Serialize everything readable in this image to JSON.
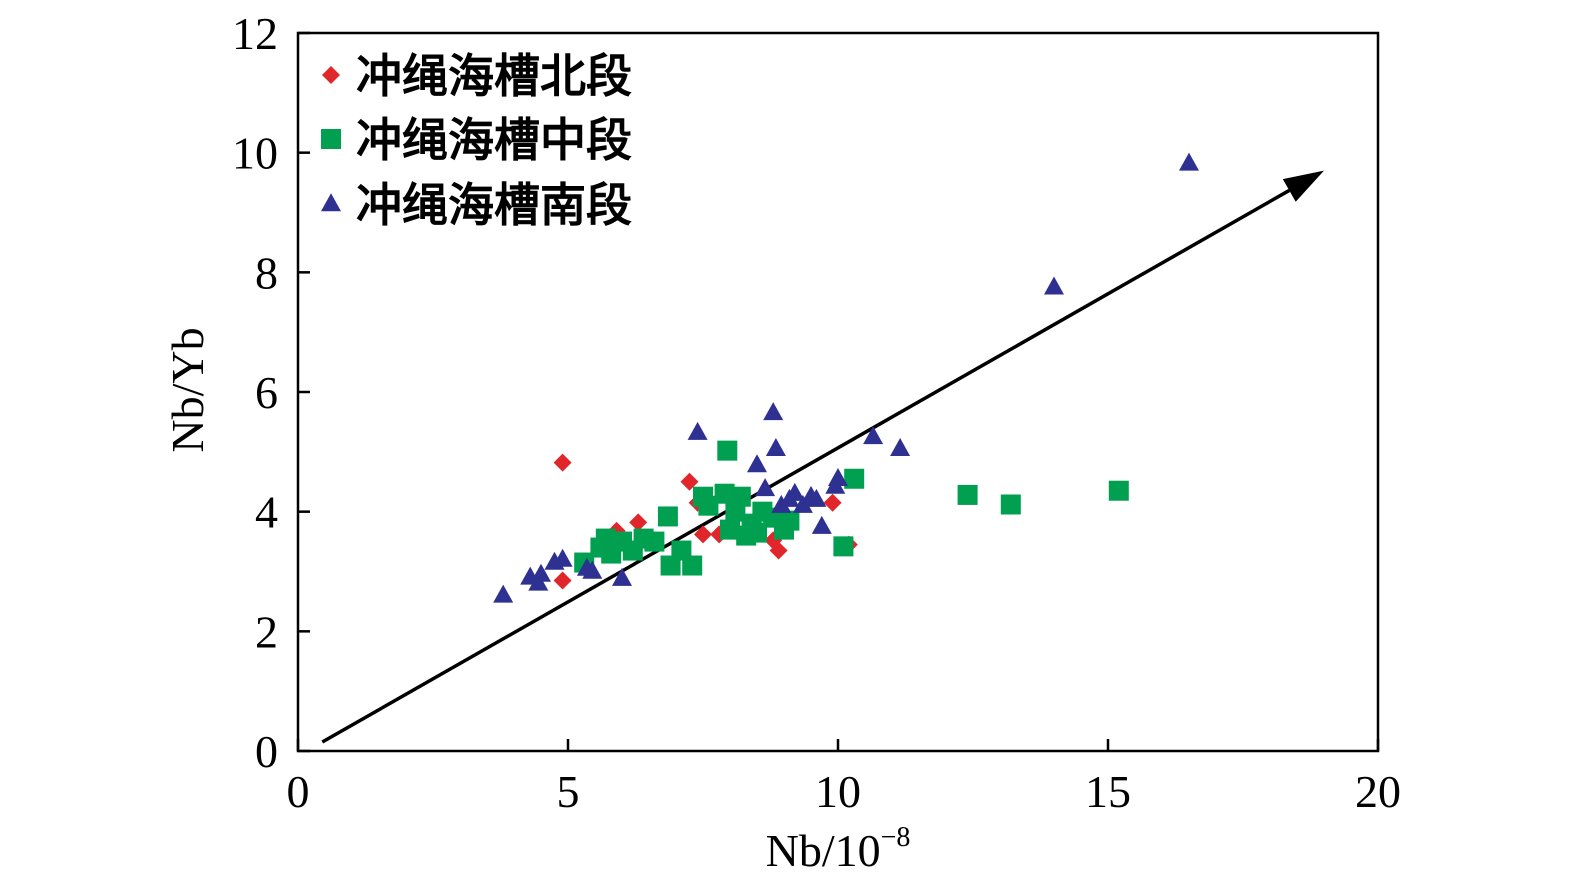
{
  "chart_data": {
    "type": "scatter",
    "xlabel_main": "Nb/10",
    "xlabel_exp": "−8",
    "ylabel": "Nb/Yb",
    "xlim": [
      0,
      20
    ],
    "ylim": [
      0,
      12
    ],
    "x_ticks": [
      0,
      5,
      10,
      15,
      20
    ],
    "x_tick_labels": [
      "0",
      "5",
      "10",
      "15",
      "20"
    ],
    "y_ticks": [
      0,
      2,
      4,
      6,
      8,
      10,
      12
    ],
    "y_tick_labels": [
      "0",
      "2",
      "4",
      "6",
      "8",
      "10",
      "12"
    ],
    "grid": false,
    "legend_position": "top-left",
    "arrow": {
      "from": [
        0.45,
        0.15
      ],
      "to": [
        19.0,
        9.7
      ]
    },
    "series": [
      {
        "name": "冲绳海槽北段",
        "marker": "diamond",
        "color": "#e0262b",
        "points": [
          [
            4.9,
            4.82
          ],
          [
            4.9,
            2.85
          ],
          [
            5.9,
            3.68
          ],
          [
            6.3,
            3.82
          ],
          [
            7.25,
            4.5
          ],
          [
            7.4,
            4.15
          ],
          [
            7.5,
            3.62
          ],
          [
            7.8,
            3.62
          ],
          [
            8.1,
            3.95
          ],
          [
            8.8,
            3.52
          ],
          [
            8.9,
            3.35
          ],
          [
            9.9,
            4.15
          ],
          [
            10.2,
            3.45
          ]
        ]
      },
      {
        "name": "冲绳海槽中段",
        "marker": "square",
        "color": "#00a050",
        "points": [
          [
            5.3,
            3.15
          ],
          [
            5.6,
            3.4
          ],
          [
            5.7,
            3.55
          ],
          [
            5.8,
            3.3
          ],
          [
            6.0,
            3.5
          ],
          [
            6.2,
            3.35
          ],
          [
            6.4,
            3.55
          ],
          [
            6.6,
            3.5
          ],
          [
            6.85,
            3.92
          ],
          [
            6.9,
            3.1
          ],
          [
            7.1,
            3.35
          ],
          [
            7.3,
            3.1
          ],
          [
            7.5,
            4.25
          ],
          [
            7.6,
            4.1
          ],
          [
            7.9,
            4.3
          ],
          [
            7.95,
            5.02
          ],
          [
            8.0,
            3.7
          ],
          [
            8.1,
            4.0
          ],
          [
            8.2,
            4.25
          ],
          [
            8.3,
            3.6
          ],
          [
            8.4,
            3.8
          ],
          [
            8.5,
            3.65
          ],
          [
            8.6,
            4.0
          ],
          [
            8.8,
            3.9
          ],
          [
            9.0,
            3.7
          ],
          [
            9.1,
            3.85
          ],
          [
            10.1,
            3.42
          ],
          [
            10.3,
            4.55
          ],
          [
            12.4,
            4.28
          ],
          [
            13.2,
            4.12
          ],
          [
            15.2,
            4.35
          ]
        ]
      },
      {
        "name": "冲绳海槽南段",
        "marker": "triangle",
        "color": "#2e3192",
        "points": [
          [
            3.8,
            2.6
          ],
          [
            4.3,
            2.9
          ],
          [
            4.45,
            2.8
          ],
          [
            4.5,
            2.95
          ],
          [
            4.75,
            3.15
          ],
          [
            4.9,
            3.2
          ],
          [
            5.35,
            3.05
          ],
          [
            5.45,
            3.0
          ],
          [
            6.0,
            2.88
          ],
          [
            7.4,
            5.32
          ],
          [
            8.5,
            4.78
          ],
          [
            8.65,
            4.38
          ],
          [
            8.8,
            5.65
          ],
          [
            8.85,
            5.05
          ],
          [
            8.95,
            4.1
          ],
          [
            9.1,
            4.2
          ],
          [
            9.2,
            4.3
          ],
          [
            9.35,
            4.1
          ],
          [
            9.5,
            4.25
          ],
          [
            9.6,
            4.2
          ],
          [
            9.7,
            3.75
          ],
          [
            9.95,
            4.42
          ],
          [
            10.0,
            4.55
          ],
          [
            10.65,
            5.25
          ],
          [
            11.15,
            5.05
          ],
          [
            14.0,
            7.75
          ],
          [
            16.5,
            9.82
          ]
        ]
      }
    ]
  }
}
